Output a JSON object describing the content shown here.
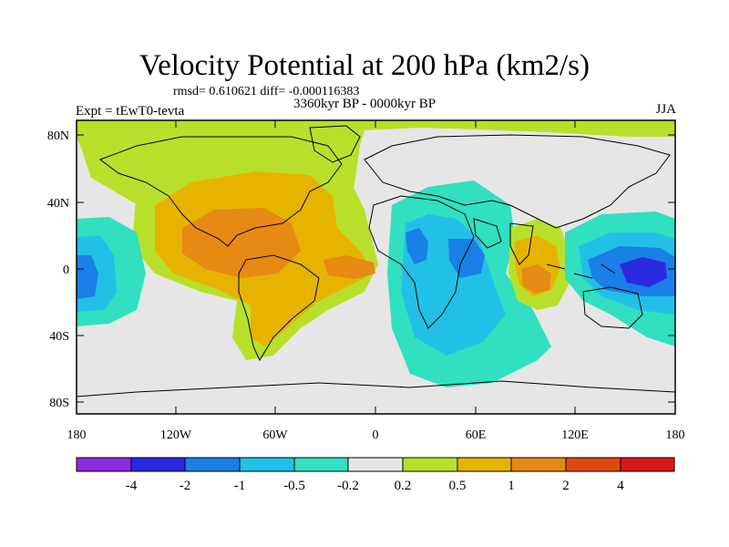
{
  "title": "Velocity Potential at 200 hPa (km2/s)",
  "stats": "rmsd= 0.610621 diff= -0.000116383",
  "experiment": "Expt = tEwT0-tevta",
  "period": "3360kyr BP - 0000kyr BP",
  "season": "JJA",
  "map": {
    "lat_labels": [
      "80N",
      "40N",
      "0",
      "40S",
      "80S"
    ],
    "lon_labels": [
      "180",
      "120W",
      "60W",
      "0",
      "60E",
      "120E",
      "180"
    ]
  },
  "colorbar": {
    "labels": [
      "-4",
      "-2",
      "-1",
      "-0.5",
      "-0.2",
      "0.2",
      "0.5",
      "1",
      "2",
      "4"
    ],
    "colors": [
      "#8a2be2",
      "#2a2ae0",
      "#1a7fe6",
      "#22c0e6",
      "#30e0c0",
      "#e6e6e6",
      "#b8e02a",
      "#e6b400",
      "#e68a14",
      "#e04a10",
      "#d81818"
    ]
  }
}
